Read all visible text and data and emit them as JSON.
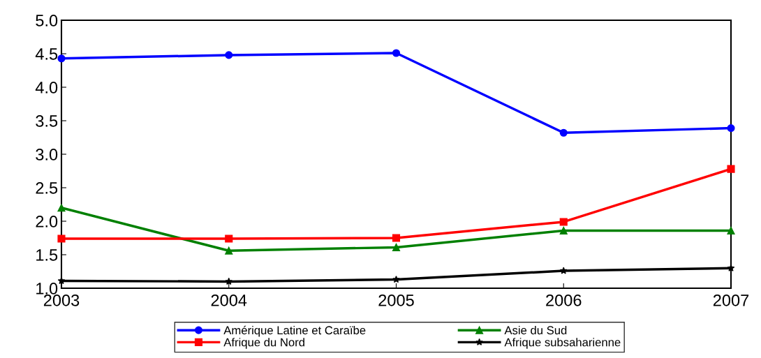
{
  "chart_data": {
    "type": "line",
    "x": [
      2003,
      2004,
      2005,
      2006,
      2007
    ],
    "series": [
      {
        "name": "Amérique Latine et Caraïbe",
        "color": "#0000ff",
        "marker": "circle",
        "values": [
          4.43,
          4.48,
          4.51,
          3.32,
          3.39
        ]
      },
      {
        "name": "Asie du Sud",
        "color": "#008000",
        "marker": "triangle",
        "values": [
          2.2,
          1.56,
          1.61,
          1.86,
          1.86
        ]
      },
      {
        "name": "Afrique du Nord",
        "color": "#ff0000",
        "marker": "square",
        "values": [
          1.74,
          1.74,
          1.75,
          1.99,
          2.78
        ]
      },
      {
        "name": "Afrique subsaharienne",
        "color": "#000000",
        "marker": "star",
        "values": [
          1.11,
          1.1,
          1.13,
          1.26,
          1.3
        ]
      }
    ],
    "xlim": [
      2003,
      2007
    ],
    "xticks": [
      2003,
      2004,
      2005,
      2006,
      2007
    ],
    "ylim": [
      1,
      5
    ],
    "yticks": [
      {
        "value": 1,
        "label": "1.0"
      },
      {
        "value": 1.5,
        "label": "1.5"
      },
      {
        "value": 2,
        "label": "2.0"
      },
      {
        "value": 2.5,
        "label": "2.5"
      },
      {
        "value": 3,
        "label": "3.0"
      },
      {
        "value": 3.5,
        "label": "3.5"
      },
      {
        "value": 4,
        "label": "4.0"
      },
      {
        "value": 4.5,
        "label": "4.5"
      },
      {
        "value": 5,
        "label": "5.0"
      }
    ],
    "grid": false,
    "legend": "bottom",
    "line_style": "solid"
  }
}
